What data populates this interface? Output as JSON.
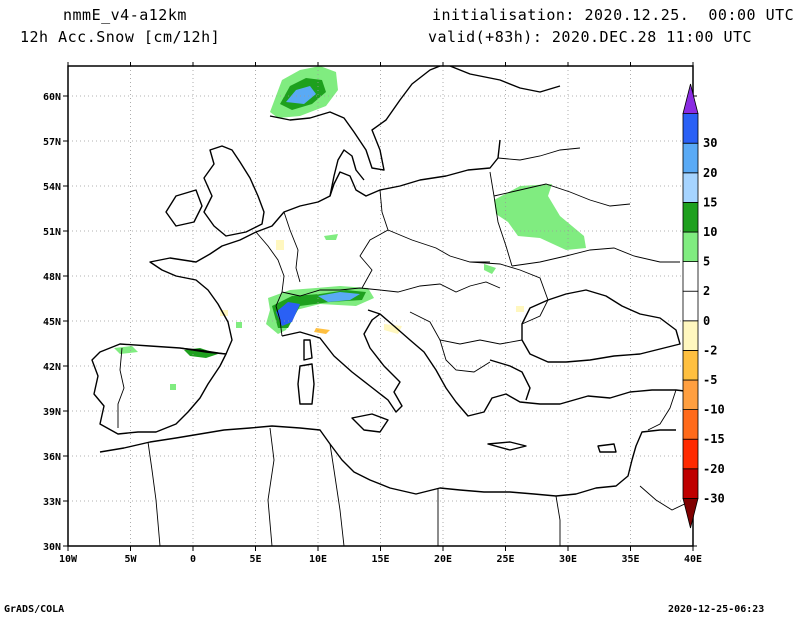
{
  "header": {
    "model": "nmmE_v4-a12km",
    "field": "12h Acc.Snow [cm/12h]",
    "init": "initialisation: 2020.12.25.  00:00 UTC",
    "valid": "valid(+83h): 2020.DEC.28 11:00 UTC"
  },
  "footer": {
    "left": "GrADS/COLA",
    "right": "2020-12-25-06:23"
  },
  "axes": {
    "lon_ticks": [
      {
        "v": -10,
        "label": "10W"
      },
      {
        "v": -5,
        "label": "5W"
      },
      {
        "v": 0,
        "label": "0"
      },
      {
        "v": 5,
        "label": "5E"
      },
      {
        "v": 10,
        "label": "10E"
      },
      {
        "v": 15,
        "label": "15E"
      },
      {
        "v": 20,
        "label": "20E"
      },
      {
        "v": 25,
        "label": "25E"
      },
      {
        "v": 30,
        "label": "30E"
      },
      {
        "v": 35,
        "label": "35E"
      },
      {
        "v": 40,
        "label": "40E"
      }
    ],
    "lat_ticks": [
      {
        "v": 30,
        "label": "30N"
      },
      {
        "v": 33,
        "label": "33N"
      },
      {
        "v": 36,
        "label": "36N"
      },
      {
        "v": 39,
        "label": "39N"
      },
      {
        "v": 42,
        "label": "42N"
      },
      {
        "v": 45,
        "label": "45N"
      },
      {
        "v": 48,
        "label": "48N"
      },
      {
        "v": 51,
        "label": "51N"
      },
      {
        "v": 54,
        "label": "54N"
      },
      {
        "v": 57,
        "label": "57N"
      },
      {
        "v": 60,
        "label": "60N"
      }
    ],
    "lon_range": [
      -10,
      40
    ],
    "lat_range": [
      30,
      62
    ],
    "grid": true
  },
  "colorbar": {
    "colors": [
      "#7f0000",
      "#bf0000",
      "#ff2a00",
      "#ff6a1a",
      "#ff9f40",
      "#ffc040",
      "#fff7bf",
      "#ffffff",
      "#ffffff",
      "#80ec80",
      "#1ea01e",
      "#a6d4ff",
      "#5aaaf5",
      "#2a60f5",
      "#8a2be2"
    ],
    "labels": [
      "-30",
      "-20",
      "-15",
      "-10",
      "-5",
      "-2",
      "0",
      "2",
      "5",
      "10",
      "15",
      "20",
      "30"
    ]
  },
  "colors": {
    "light_green": "#80ec80",
    "dark_green": "#1ea01e",
    "light_blue": "#a6d4ff",
    "mid_blue": "#5aaaf5",
    "blue": "#2a60f5",
    "pale_yellow": "#fff7bf",
    "orange": "#ffc040"
  }
}
